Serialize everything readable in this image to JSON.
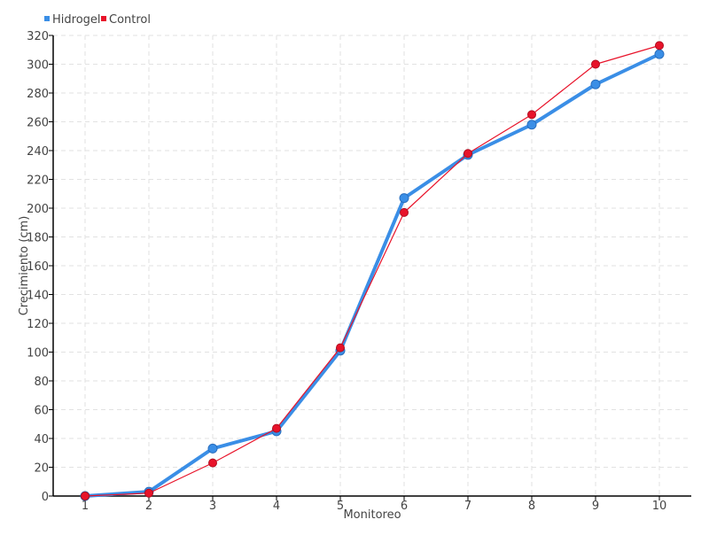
{
  "chart_data": {
    "type": "line",
    "title": "",
    "xlabel": "Monitoreo",
    "ylabel": "Crecimiento (cm)",
    "x": [
      1,
      2,
      3,
      4,
      5,
      6,
      7,
      8,
      9,
      10
    ],
    "xlim": [
      0.5,
      10.5
    ],
    "ylim": [
      0,
      320
    ],
    "yticks": [
      0,
      20,
      40,
      60,
      80,
      100,
      120,
      140,
      160,
      180,
      200,
      220,
      240,
      260,
      280,
      300,
      320
    ],
    "grid": true,
    "legend_position": "top-left",
    "series": [
      {
        "name": "Hidrogel",
        "color": "#3a8ee6",
        "values": [
          0,
          3,
          33,
          45,
          101,
          207,
          237,
          258,
          286,
          307
        ]
      },
      {
        "name": "Control",
        "color": "#e8132a",
        "values": [
          0,
          2,
          23,
          47,
          103,
          197,
          238,
          265,
          300,
          313
        ]
      }
    ]
  }
}
